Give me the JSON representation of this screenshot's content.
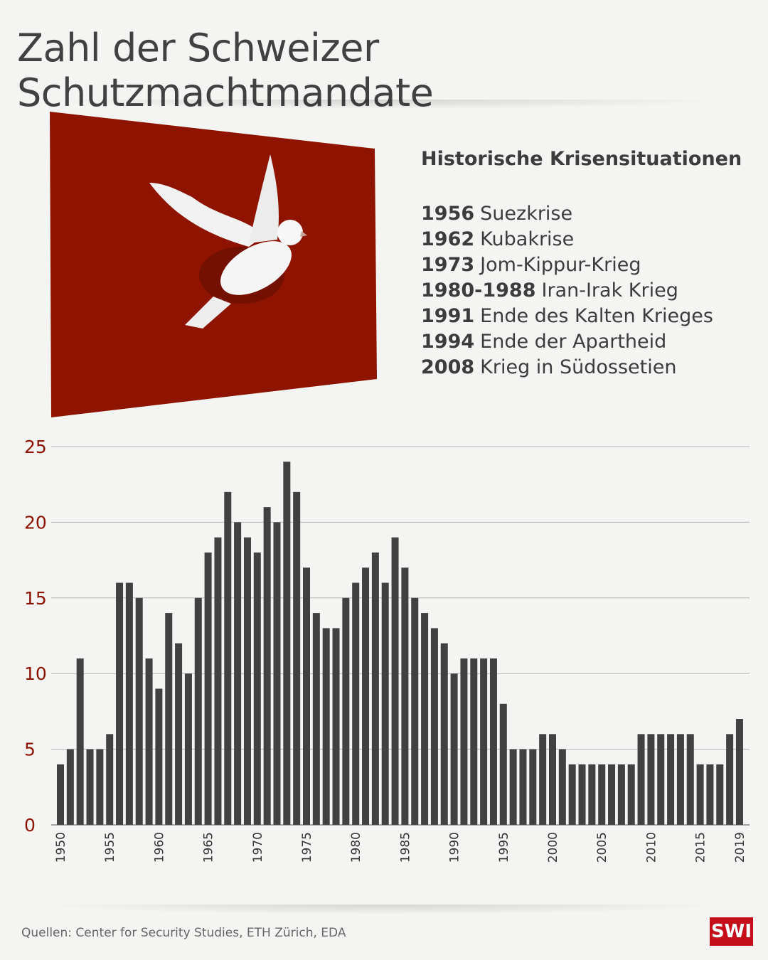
{
  "title": "Zahl der Schweizer Schutzmachtmandate",
  "crises": {
    "heading": "Historische Krisensituationen",
    "items": [
      {
        "year": "1956",
        "label": "Suezkrise"
      },
      {
        "year": "1962",
        "label": "Kubakrise"
      },
      {
        "year": "1973",
        "label": "Jom-Kippur-Krieg"
      },
      {
        "year": "1980-1988",
        "label": "Iran-Irak Krieg"
      },
      {
        "year": "1991",
        "label": "Ende des Kalten Krieges"
      },
      {
        "year": "1994",
        "label": "Ende der Apartheid"
      },
      {
        "year": "2008",
        "label": "Krieg in Südossetien"
      }
    ]
  },
  "colors": {
    "bar": "#414141",
    "axis_label": "#8b1300",
    "panel": "#8e1400"
  },
  "chart_data": {
    "type": "bar",
    "title": "Zahl der Schweizer Schutzmachtmandate",
    "xlabel": "",
    "ylabel": "",
    "ylim": [
      0,
      25
    ],
    "yticks": [
      0,
      5,
      10,
      15,
      20,
      25
    ],
    "xtick_labels": [
      "1950",
      "1955",
      "1960",
      "1965",
      "1970",
      "1975",
      "1980",
      "1985",
      "1990",
      "1995",
      "2000",
      "2005",
      "2010",
      "2015",
      "2019"
    ],
    "start_year": 1950,
    "values": [
      4,
      5,
      11,
      5,
      5,
      6,
      16,
      16,
      15,
      11,
      9,
      14,
      12,
      10,
      15,
      18,
      19,
      22,
      20,
      19,
      18,
      21,
      20,
      24,
      22,
      17,
      14,
      13,
      13,
      15,
      16,
      17,
      18,
      16,
      19,
      17,
      15,
      14,
      13,
      12,
      10,
      11,
      11,
      11,
      11,
      8,
      5,
      5,
      5,
      6,
      6,
      5,
      4,
      4,
      4,
      4,
      4,
      4,
      4,
      6,
      6,
      6,
      6,
      6,
      6,
      4,
      4,
      4,
      6,
      7
    ],
    "grid": true
  },
  "footer": {
    "source": "Quellen: Center for Security Studies, ETH Zürich, EDA",
    "logo": "SWI"
  }
}
